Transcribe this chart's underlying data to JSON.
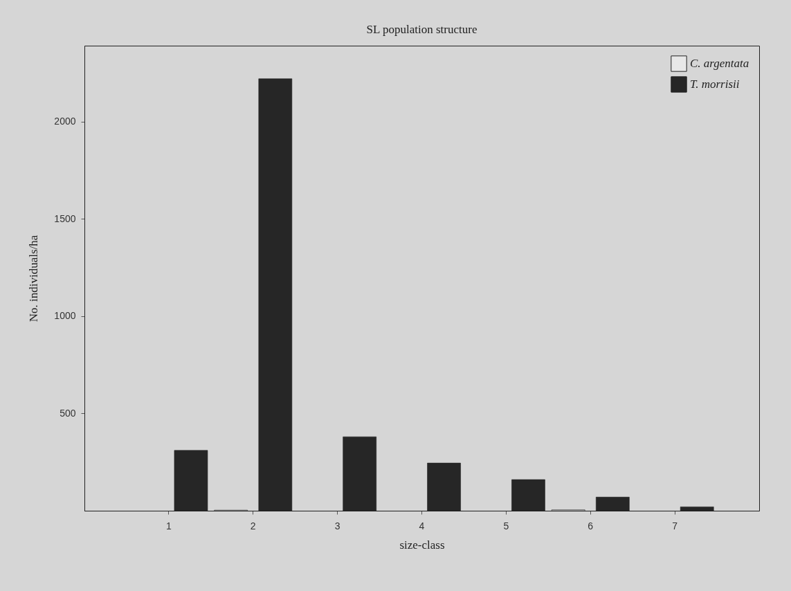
{
  "chart_data": {
    "type": "bar",
    "title": "SL population structure",
    "xlabel": "size-class",
    "ylabel": "No. individuals/ha",
    "categories": [
      "1",
      "2",
      "3",
      "4",
      "5",
      "6",
      "7"
    ],
    "series": [
      {
        "name": "C. argentata",
        "color": "#e8e8e8",
        "values": [
          0,
          3,
          0,
          0,
          0,
          5,
          0
        ]
      },
      {
        "name": "T. morrisii",
        "color": "#262626",
        "values": [
          310,
          2220,
          380,
          245,
          160,
          70,
          20
        ]
      }
    ],
    "ylim": [
      0,
      2390
    ],
    "yticks": [
      500,
      1000,
      1500,
      2000
    ],
    "grid": false,
    "legend": "top right"
  }
}
